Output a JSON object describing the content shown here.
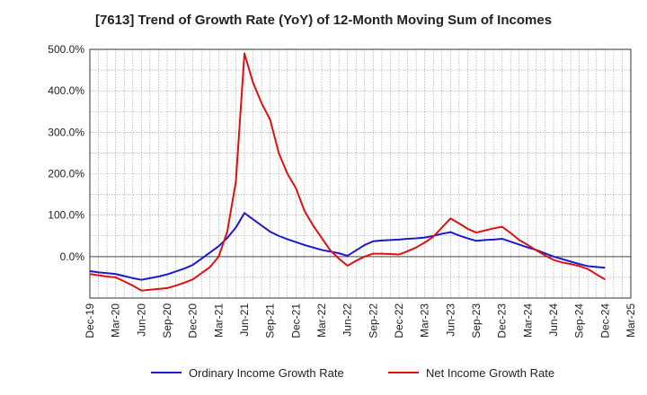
{
  "chart_data": {
    "type": "line",
    "title": "[7613]  Trend of Growth Rate (YoY) of 12-Month Moving Sum of Incomes",
    "xlabel": "",
    "ylabel": "",
    "ylim": [
      -100,
      500
    ],
    "y_ticks": [
      "500.0%",
      "400.0%",
      "300.0%",
      "200.0%",
      "100.0%",
      "0.0%"
    ],
    "y_tick_values": [
      500,
      400,
      300,
      200,
      100,
      0
    ],
    "x_ticks": [
      "Dec-19",
      "Mar-20",
      "Jun-20",
      "Sep-20",
      "Dec-20",
      "Mar-21",
      "Jun-21",
      "Sep-21",
      "Dec-21",
      "Mar-22",
      "Jun-22",
      "Sep-22",
      "Dec-22",
      "Mar-23",
      "Jun-23",
      "Sep-23",
      "Dec-23",
      "Mar-24",
      "Jun-24",
      "Sep-24",
      "Dec-24",
      "Mar-25"
    ],
    "grid": true,
    "legend_position": "bottom",
    "months": [
      "Dec-19",
      "Jan-20",
      "Feb-20",
      "Mar-20",
      "Apr-20",
      "May-20",
      "Jun-20",
      "Jul-20",
      "Aug-20",
      "Sep-20",
      "Oct-20",
      "Nov-20",
      "Dec-20",
      "Jan-21",
      "Feb-21",
      "Mar-21",
      "Apr-21",
      "May-21",
      "Jun-21",
      "Jul-21",
      "Aug-21",
      "Sep-21",
      "Oct-21",
      "Nov-21",
      "Dec-21",
      "Jan-22",
      "Feb-22",
      "Mar-22",
      "Apr-22",
      "May-22",
      "Jun-22",
      "Jul-22",
      "Aug-22",
      "Sep-22",
      "Oct-22",
      "Nov-22",
      "Dec-22",
      "Jan-23",
      "Feb-23",
      "Mar-23",
      "Apr-23",
      "May-23",
      "Jun-23",
      "Jul-23",
      "Aug-23",
      "Sep-23",
      "Oct-23",
      "Nov-23",
      "Dec-23",
      "Jan-24",
      "Feb-24",
      "Mar-24",
      "Apr-24",
      "May-24",
      "Jun-24",
      "Jul-24",
      "Aug-24",
      "Sep-24",
      "Oct-24",
      "Nov-24",
      "Dec-24"
    ],
    "series": [
      {
        "name": "Ordinary Income Growth Rate",
        "color": "#1a1acc",
        "values": [
          -35,
          -38,
          -40,
          -42,
          -47,
          -52,
          -56,
          -52,
          -48,
          -43,
          -36,
          -29,
          -20,
          -5,
          10,
          25,
          45,
          70,
          105,
          90,
          75,
          60,
          50,
          42,
          35,
          28,
          22,
          16,
          12,
          8,
          2,
          15,
          28,
          37,
          39,
          40,
          41,
          43,
          44,
          46,
          50,
          55,
          59,
          51,
          44,
          38,
          40,
          41,
          43,
          36,
          29,
          22,
          16,
          8,
          0,
          -6,
          -12,
          -18,
          -23,
          -25,
          -27
        ]
      },
      {
        "name": "Net Income Growth Rate",
        "color": "#dd1111",
        "values": [
          -42,
          -45,
          -48,
          -50,
          -60,
          -70,
          -82,
          -80,
          -78,
          -76,
          -70,
          -63,
          -55,
          -40,
          -25,
          0,
          60,
          180,
          490,
          420,
          370,
          330,
          250,
          200,
          165,
          110,
          75,
          45,
          15,
          -5,
          -22,
          -10,
          0,
          7,
          7,
          6,
          5,
          13,
          22,
          34,
          48,
          70,
          92,
          80,
          67,
          58,
          63,
          68,
          72,
          57,
          40,
          28,
          15,
          3,
          -8,
          -14,
          -18,
          -23,
          -30,
          -43,
          -55
        ]
      }
    ]
  }
}
